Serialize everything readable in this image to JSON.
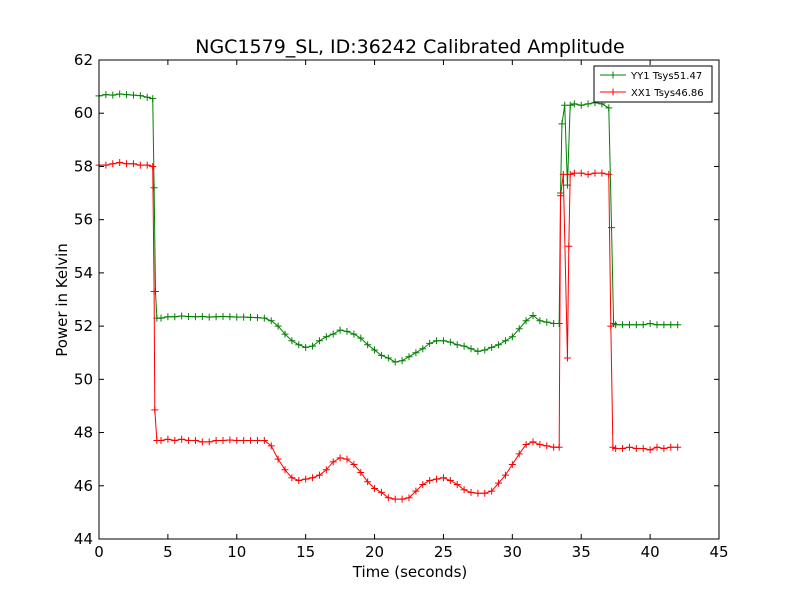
{
  "chart_data": {
    "type": "line",
    "title": "NGC1579_SL, ID:36242 Calibrated Amplitude",
    "xlabel": "Time (seconds)",
    "ylabel": "Power in Kelvin",
    "xlim": [
      0,
      45
    ],
    "ylim": [
      44,
      62
    ],
    "xticks": [
      "0",
      "5",
      "10",
      "15",
      "20",
      "25",
      "30",
      "35",
      "40",
      "45"
    ],
    "yticks": [
      "44",
      "46",
      "48",
      "50",
      "52",
      "54",
      "56",
      "58",
      "60",
      "62"
    ],
    "grid": false,
    "legend_position": "top-right",
    "series": [
      {
        "name": "YY1 Tsys51.47",
        "color": "#008000",
        "marker": "plus",
        "points": [
          [
            0.0,
            60.65
          ],
          [
            0.5,
            60.7
          ],
          [
            1.0,
            60.68
          ],
          [
            1.5,
            60.72
          ],
          [
            2.0,
            60.7
          ],
          [
            2.5,
            60.68
          ],
          [
            3.0,
            60.66
          ],
          [
            3.5,
            60.6
          ],
          [
            3.9,
            60.55
          ],
          [
            4.0,
            57.2
          ],
          [
            4.1,
            53.3
          ],
          [
            4.2,
            52.3
          ],
          [
            4.5,
            52.3
          ],
          [
            5.0,
            52.35
          ],
          [
            5.5,
            52.35
          ],
          [
            6.0,
            52.38
          ],
          [
            6.5,
            52.36
          ],
          [
            7.0,
            52.35
          ],
          [
            7.5,
            52.36
          ],
          [
            8.0,
            52.34
          ],
          [
            8.5,
            52.35
          ],
          [
            9.0,
            52.36
          ],
          [
            9.5,
            52.35
          ],
          [
            10.0,
            52.34
          ],
          [
            10.5,
            52.34
          ],
          [
            11.0,
            52.33
          ],
          [
            11.5,
            52.32
          ],
          [
            12.0,
            52.3
          ],
          [
            12.5,
            52.2
          ],
          [
            13.0,
            52.0
          ],
          [
            13.5,
            51.7
          ],
          [
            14.0,
            51.45
          ],
          [
            14.5,
            51.3
          ],
          [
            15.0,
            51.2
          ],
          [
            15.5,
            51.25
          ],
          [
            16.0,
            51.45
          ],
          [
            16.5,
            51.6
          ],
          [
            17.0,
            51.7
          ],
          [
            17.5,
            51.85
          ],
          [
            18.0,
            51.8
          ],
          [
            18.5,
            51.7
          ],
          [
            19.0,
            51.55
          ],
          [
            19.5,
            51.3
          ],
          [
            20.0,
            51.1
          ],
          [
            20.5,
            50.9
          ],
          [
            21.0,
            50.8
          ],
          [
            21.5,
            50.65
          ],
          [
            22.0,
            50.7
          ],
          [
            22.5,
            50.85
          ],
          [
            23.0,
            51.0
          ],
          [
            23.5,
            51.15
          ],
          [
            24.0,
            51.35
          ],
          [
            24.5,
            51.45
          ],
          [
            25.0,
            51.45
          ],
          [
            25.5,
            51.4
          ],
          [
            26.0,
            51.3
          ],
          [
            26.5,
            51.25
          ],
          [
            27.0,
            51.15
          ],
          [
            27.5,
            51.05
          ],
          [
            28.0,
            51.1
          ],
          [
            28.5,
            51.2
          ],
          [
            29.0,
            51.3
          ],
          [
            29.5,
            51.45
          ],
          [
            30.0,
            51.6
          ],
          [
            30.5,
            51.9
          ],
          [
            31.0,
            52.2
          ],
          [
            31.5,
            52.4
          ],
          [
            32.0,
            52.2
          ],
          [
            32.5,
            52.15
          ],
          [
            33.0,
            52.1
          ],
          [
            33.4,
            52.1
          ],
          [
            33.5,
            57.0
          ],
          [
            33.6,
            59.6
          ],
          [
            33.8,
            60.3
          ],
          [
            34.0,
            57.3
          ],
          [
            34.2,
            60.3
          ],
          [
            34.5,
            60.35
          ],
          [
            35.0,
            60.3
          ],
          [
            35.5,
            60.35
          ],
          [
            36.0,
            60.4
          ],
          [
            36.5,
            60.35
          ],
          [
            37.0,
            60.2
          ],
          [
            37.2,
            55.7
          ],
          [
            37.35,
            52.1
          ],
          [
            37.5,
            52.05
          ],
          [
            38.0,
            52.05
          ],
          [
            38.5,
            52.05
          ],
          [
            39.0,
            52.05
          ],
          [
            39.5,
            52.05
          ],
          [
            40.0,
            52.1
          ],
          [
            40.5,
            52.05
          ],
          [
            41.0,
            52.05
          ],
          [
            41.5,
            52.05
          ],
          [
            42.0,
            52.05
          ]
        ]
      },
      {
        "name": "XX1 Tsys46.86",
        "color": "#ff0000",
        "marker": "plus",
        "points": [
          [
            0.0,
            58.05
          ],
          [
            0.5,
            58.05
          ],
          [
            1.0,
            58.1
          ],
          [
            1.5,
            58.15
          ],
          [
            2.0,
            58.1
          ],
          [
            2.5,
            58.1
          ],
          [
            3.0,
            58.05
          ],
          [
            3.5,
            58.05
          ],
          [
            3.9,
            58.0
          ],
          [
            4.0,
            53.3
          ],
          [
            4.05,
            48.85
          ],
          [
            4.2,
            47.7
          ],
          [
            4.5,
            47.7
          ],
          [
            5.0,
            47.75
          ],
          [
            5.5,
            47.7
          ],
          [
            6.0,
            47.75
          ],
          [
            6.5,
            47.7
          ],
          [
            7.0,
            47.7
          ],
          [
            7.5,
            47.65
          ],
          [
            8.0,
            47.65
          ],
          [
            8.5,
            47.7
          ],
          [
            9.0,
            47.7
          ],
          [
            9.5,
            47.72
          ],
          [
            10.0,
            47.7
          ],
          [
            10.5,
            47.7
          ],
          [
            11.0,
            47.7
          ],
          [
            11.5,
            47.7
          ],
          [
            12.0,
            47.7
          ],
          [
            12.5,
            47.5
          ],
          [
            13.0,
            47.0
          ],
          [
            13.5,
            46.6
          ],
          [
            14.0,
            46.3
          ],
          [
            14.5,
            46.2
          ],
          [
            15.0,
            46.25
          ],
          [
            15.5,
            46.3
          ],
          [
            16.0,
            46.4
          ],
          [
            16.5,
            46.6
          ],
          [
            17.0,
            46.9
          ],
          [
            17.5,
            47.05
          ],
          [
            18.0,
            47.0
          ],
          [
            18.5,
            46.8
          ],
          [
            19.0,
            46.5
          ],
          [
            19.5,
            46.15
          ],
          [
            20.0,
            45.9
          ],
          [
            20.5,
            45.75
          ],
          [
            21.0,
            45.55
          ],
          [
            21.5,
            45.5
          ],
          [
            22.0,
            45.5
          ],
          [
            22.5,
            45.55
          ],
          [
            23.0,
            45.8
          ],
          [
            23.5,
            46.05
          ],
          [
            24.0,
            46.2
          ],
          [
            24.5,
            46.25
          ],
          [
            25.0,
            46.3
          ],
          [
            25.5,
            46.2
          ],
          [
            26.0,
            46.05
          ],
          [
            26.5,
            45.85
          ],
          [
            27.0,
            45.75
          ],
          [
            27.5,
            45.72
          ],
          [
            28.0,
            45.72
          ],
          [
            28.5,
            45.8
          ],
          [
            29.0,
            46.1
          ],
          [
            29.5,
            46.4
          ],
          [
            30.0,
            46.8
          ],
          [
            30.5,
            47.2
          ],
          [
            31.0,
            47.55
          ],
          [
            31.5,
            47.65
          ],
          [
            32.0,
            47.55
          ],
          [
            32.5,
            47.5
          ],
          [
            33.0,
            47.45
          ],
          [
            33.4,
            47.45
          ],
          [
            33.5,
            56.9
          ],
          [
            33.7,
            57.7
          ],
          [
            34.0,
            50.8
          ],
          [
            34.1,
            55.0
          ],
          [
            34.2,
            57.7
          ],
          [
            34.5,
            57.75
          ],
          [
            35.0,
            57.75
          ],
          [
            35.5,
            57.7
          ],
          [
            36.0,
            57.75
          ],
          [
            36.5,
            57.75
          ],
          [
            37.0,
            57.7
          ],
          [
            37.15,
            52.0
          ],
          [
            37.3,
            47.45
          ],
          [
            37.5,
            47.4
          ],
          [
            38.0,
            47.4
          ],
          [
            38.5,
            47.45
          ],
          [
            39.0,
            47.4
          ],
          [
            39.5,
            47.4
          ],
          [
            40.0,
            47.35
          ],
          [
            40.5,
            47.45
          ],
          [
            41.0,
            47.4
          ],
          [
            41.5,
            47.45
          ],
          [
            42.0,
            47.45
          ]
        ]
      }
    ]
  }
}
